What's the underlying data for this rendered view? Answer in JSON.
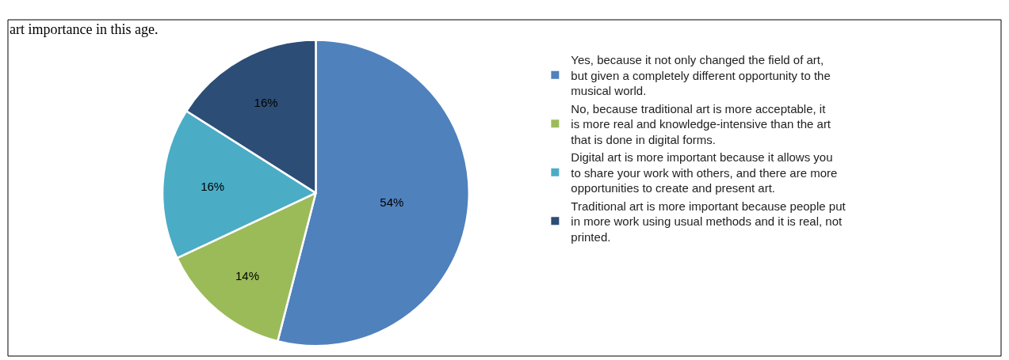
{
  "chart_data": {
    "type": "pie",
    "annotations": [
      "art importance in this age."
    ],
    "categories": [
      "Yes, because it not only changed the field of art, but given a completely different opportunity to the musical world.",
      "No, because traditional art is more acceptable, it is more real and knowledge-intensive than the art that is done in digital forms.",
      "Digital art is more important because it allows you to share your work with others, and there are more opportunities to create and present art.",
      "Traditional art is more important because people put in more work using usual methods and it is real, not printed."
    ],
    "values": [
      54,
      14,
      16,
      16
    ],
    "value_labels": [
      "54%",
      "14%",
      "16%",
      "16%"
    ],
    "colors": [
      "#4f81bd",
      "#9bbb59",
      "#4bacc6",
      "#2c4d75"
    ],
    "legend": "right"
  }
}
